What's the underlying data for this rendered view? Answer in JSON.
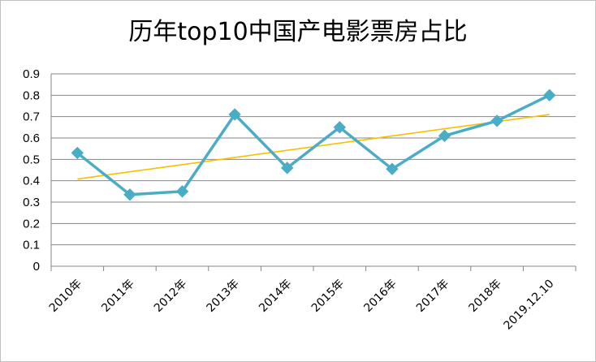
{
  "chart_data": {
    "type": "line",
    "title": "历年top10中国产电影票房占比",
    "xlabel": "",
    "ylabel": "",
    "categories": [
      "2010年",
      "2011年",
      "2012年",
      "2013年",
      "2014年",
      "2015年",
      "2016年",
      "2017年",
      "2018年",
      "2019.12.10"
    ],
    "y_ticks": [
      "0",
      "0.1",
      "0.2",
      "0.3",
      "0.4",
      "0.5",
      "0.6",
      "0.7",
      "0.8",
      "0.9"
    ],
    "ylim": [
      0,
      0.9
    ],
    "grid": true,
    "legend": "none",
    "series": [
      {
        "values": [
          0.53,
          0.335,
          0.35,
          0.71,
          0.46,
          0.65,
          0.455,
          0.61,
          0.68,
          0.8
        ],
        "color": "#4bacc6",
        "marker": "diamond"
      }
    ],
    "trendline": {
      "type": "linear",
      "start": 0.408,
      "end": 0.71,
      "color": "#f5c100"
    }
  }
}
